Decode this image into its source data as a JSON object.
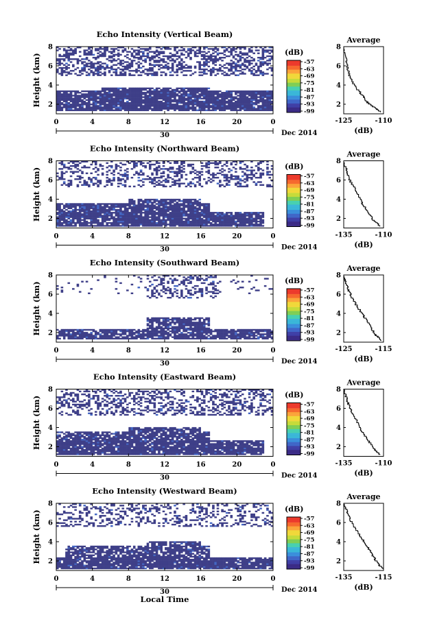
{
  "page": {
    "xlabel": "Local Time"
  },
  "colorbar": {
    "unit": "(dB)",
    "ticks": [
      "-57",
      "-63",
      "-69",
      "-75",
      "-81",
      "-87",
      "-93",
      "-99"
    ],
    "colors": [
      "#f14432",
      "#fba33a",
      "#e9e13a",
      "#7fce54",
      "#3ac4c8",
      "#3a8edb",
      "#4467c4",
      "#3e3fa0"
    ]
  },
  "chart_data": [
    {
      "type": "heatmap",
      "title": "Echo Intensity (Vertical Beam)",
      "ylabel": "Height (km)",
      "xticks": [
        "0",
        "4",
        "8",
        "12",
        "16",
        "20",
        "0"
      ],
      "yticks": [
        "2",
        "4",
        "6",
        "8"
      ],
      "date_day": "30",
      "date_label": "Dec 2014",
      "xlim": [
        0,
        24
      ],
      "ylim": [
        1,
        8
      ],
      "description": "returns 1-3.5 km solid, 5-8 km patchy; value mostly ~ -99 to -93 dB",
      "layers": [
        {
          "y": [
            1.3,
            3.4
          ],
          "x": [
            0,
            24
          ],
          "density": 0.9
        },
        {
          "y": [
            3.4,
            3.8
          ],
          "x": [
            5,
            17
          ],
          "density": 0.85
        },
        {
          "y": [
            5.0,
            8.0
          ],
          "x": [
            0,
            24
          ],
          "density": 0.45
        }
      ],
      "average": {
        "title": "Average",
        "xlabel": "(dB)",
        "xticks": [
          "-125",
          "-110"
        ],
        "xlim": [
          -125,
          -110
        ],
        "yticks": [
          "2",
          "4",
          "6",
          "8"
        ],
        "profile": [
          [
            -111,
            1.2
          ],
          [
            -113,
            1.6
          ],
          [
            -116,
            2.2
          ],
          [
            -118,
            3.0
          ],
          [
            -121,
            4.0
          ],
          [
            -123,
            5.2
          ],
          [
            -124,
            6.5
          ],
          [
            -125,
            8.0
          ]
        ]
      }
    },
    {
      "type": "heatmap",
      "title": "Echo Intensity (Northward Beam)",
      "ylabel": "Height (km)",
      "xticks": [
        "0",
        "4",
        "8",
        "12",
        "16",
        "20",
        "0"
      ],
      "yticks": [
        "2",
        "4",
        "6",
        "8"
      ],
      "date_day": "30",
      "date_label": "Dec 2014",
      "xlim": [
        0,
        24
      ],
      "ylim": [
        1,
        8
      ],
      "layers": [
        {
          "y": [
            1.2,
            2.6
          ],
          "x": [
            0,
            23
          ],
          "density": 0.9
        },
        {
          "y": [
            2.6,
            3.6
          ],
          "x": [
            0,
            17
          ],
          "density": 0.85
        },
        {
          "y": [
            3.6,
            4.0
          ],
          "x": [
            8,
            16
          ],
          "density": 0.85
        },
        {
          "y": [
            5.2,
            8.0
          ],
          "x": [
            0,
            24
          ],
          "density": 0.35
        }
      ],
      "average": {
        "title": "Average",
        "xlabel": "(dB)",
        "xticks": [
          "-135",
          "-110"
        ],
        "xlim": [
          -135,
          -110
        ],
        "yticks": [
          "2",
          "4",
          "6",
          "8"
        ],
        "profile": [
          [
            -112,
            1.2
          ],
          [
            -116,
            1.8
          ],
          [
            -120,
            2.8
          ],
          [
            -124,
            3.8
          ],
          [
            -127,
            4.8
          ],
          [
            -131,
            6.0
          ],
          [
            -133,
            7.0
          ],
          [
            -135,
            8.0
          ]
        ]
      }
    },
    {
      "type": "heatmap",
      "title": "Echo Intensity (Southward Beam)",
      "ylabel": "Height (km)",
      "xticks": [
        "0",
        "4",
        "8",
        "12",
        "16",
        "20",
        "0"
      ],
      "yticks": [
        "2",
        "4",
        "6",
        "8"
      ],
      "date_day": "30",
      "date_label": "Dec 2014",
      "xlim": [
        0,
        24
      ],
      "ylim": [
        1,
        8
      ],
      "layers": [
        {
          "y": [
            1.3,
            2.4
          ],
          "x": [
            0,
            24
          ],
          "density": 0.85
        },
        {
          "y": [
            2.4,
            3.6
          ],
          "x": [
            10,
            17
          ],
          "density": 0.85
        },
        {
          "y": [
            5.5,
            8.0
          ],
          "x": [
            10,
            18
          ],
          "density": 0.35
        },
        {
          "y": [
            6.0,
            8.0
          ],
          "x": [
            0,
            24
          ],
          "density": 0.06
        }
      ],
      "average": {
        "title": "Average",
        "xlabel": "(dB)",
        "xticks": [
          "-125",
          "-115"
        ],
        "xlim": [
          -125,
          -115
        ],
        "yticks": [
          "2",
          "4",
          "6",
          "8"
        ],
        "profile": [
          [
            -115.5,
            1.2
          ],
          [
            -117,
            1.8
          ],
          [
            -118.5,
            2.8
          ],
          [
            -120,
            3.8
          ],
          [
            -122,
            5.0
          ],
          [
            -123.5,
            6.2
          ],
          [
            -124.5,
            7.2
          ],
          [
            -125,
            8.0
          ]
        ]
      }
    },
    {
      "type": "heatmap",
      "title": "Echo Intensity (Eastward Beam)",
      "ylabel": "Height (km)",
      "xticks": [
        "0",
        "4",
        "8",
        "12",
        "16",
        "20",
        "0"
      ],
      "yticks": [
        "2",
        "4",
        "6",
        "8"
      ],
      "date_day": "30",
      "date_label": "Dec 2014",
      "xlim": [
        0,
        24
      ],
      "ylim": [
        1,
        8
      ],
      "layers": [
        {
          "y": [
            1.2,
            2.6
          ],
          "x": [
            0,
            23
          ],
          "density": 0.9
        },
        {
          "y": [
            2.6,
            3.6
          ],
          "x": [
            0,
            17
          ],
          "density": 0.85
        },
        {
          "y": [
            3.6,
            4.0
          ],
          "x": [
            8,
            16
          ],
          "density": 0.85
        },
        {
          "y": [
            5.2,
            8.0
          ],
          "x": [
            0,
            24
          ],
          "density": 0.4
        }
      ],
      "average": {
        "title": "Average",
        "xlabel": "(dB)",
        "xticks": [
          "-135",
          "-110"
        ],
        "xlim": [
          -135,
          -110
        ],
        "yticks": [
          "2",
          "4",
          "6",
          "8"
        ],
        "profile": [
          [
            -112,
            1.2
          ],
          [
            -116,
            1.8
          ],
          [
            -120,
            2.8
          ],
          [
            -124,
            3.8
          ],
          [
            -127,
            4.8
          ],
          [
            -131,
            6.0
          ],
          [
            -133,
            7.0
          ],
          [
            -135,
            8.0
          ]
        ]
      }
    },
    {
      "type": "heatmap",
      "title": "Echo Intensity (Westward Beam)",
      "ylabel": "Height (km)",
      "xticks": [
        "0",
        "4",
        "8",
        "12",
        "16",
        "20",
        "0"
      ],
      "yticks": [
        "2",
        "4",
        "6",
        "8"
      ],
      "date_day": "30",
      "date_label": "Dec 2014",
      "xlim": [
        0,
        24
      ],
      "ylim": [
        1,
        8
      ],
      "layers": [
        {
          "y": [
            1.2,
            2.4
          ],
          "x": [
            0,
            24
          ],
          "density": 0.9
        },
        {
          "y": [
            2.4,
            3.6
          ],
          "x": [
            1,
            17
          ],
          "density": 0.75
        },
        {
          "y": [
            3.6,
            4.0
          ],
          "x": [
            10,
            16
          ],
          "density": 0.85
        },
        {
          "y": [
            5.5,
            8.0
          ],
          "x": [
            0,
            24
          ],
          "density": 0.3
        }
      ],
      "average": {
        "title": "Average",
        "xlabel": "(dB)",
        "xticks": [
          "-135",
          "-115"
        ],
        "xlim": [
          -135,
          -115
        ],
        "yticks": [
          "2",
          "4",
          "6",
          "8"
        ],
        "profile": [
          [
            -115.5,
            1.2
          ],
          [
            -118,
            1.8
          ],
          [
            -121,
            2.8
          ],
          [
            -124,
            3.8
          ],
          [
            -127,
            4.8
          ],
          [
            -131,
            6.0
          ],
          [
            -133,
            7.0
          ],
          [
            -135,
            8.0
          ]
        ]
      }
    }
  ]
}
